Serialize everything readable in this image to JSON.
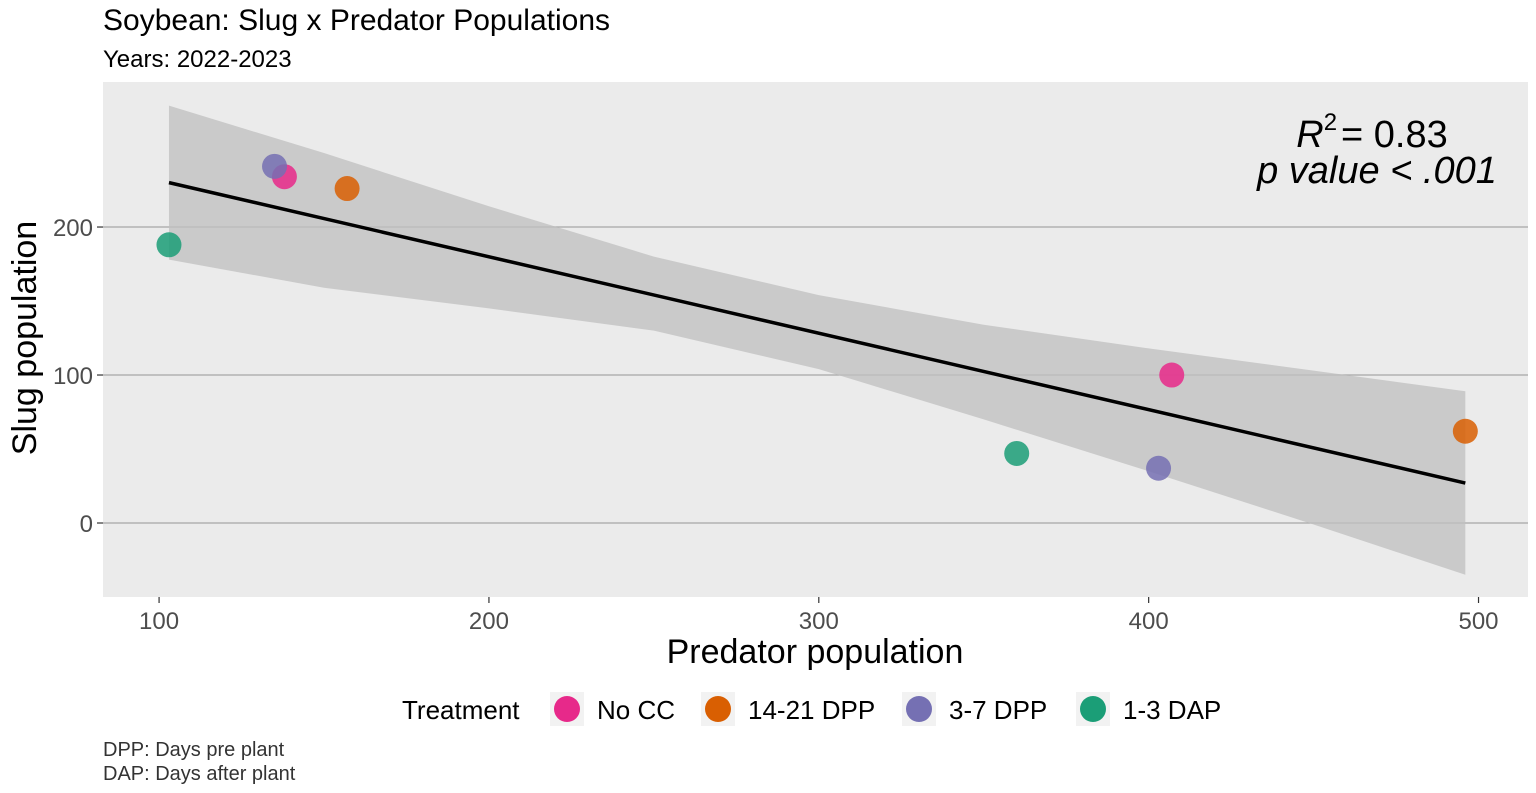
{
  "chart_data": {
    "type": "scatter",
    "title": "Soybean: Slug x Predator Populations",
    "subtitle": "Years: 2022-2023",
    "xlabel": "Predator population",
    "ylabel": "Slug population",
    "xlim": [
      83,
      515
    ],
    "ylim": [
      -50,
      298
    ],
    "xticks": [
      100,
      200,
      300,
      400,
      500
    ],
    "yticks": [
      0,
      100,
      200
    ],
    "grid": true,
    "legend_position": "bottom",
    "legend_title": "Treatment",
    "series": [
      {
        "name": "No CC",
        "color": "#e7298a",
        "points": [
          [
            138,
            234
          ],
          [
            407,
            100
          ]
        ]
      },
      {
        "name": "14-21 DPP",
        "color": "#d95f02",
        "points": [
          [
            157,
            226
          ],
          [
            496,
            62
          ]
        ]
      },
      {
        "name": "3-7 DPP",
        "color": "#7570b3",
        "points": [
          [
            135,
            241
          ],
          [
            403,
            37
          ]
        ]
      },
      {
        "name": "1-3 DAP",
        "color": "#1b9e77",
        "points": [
          [
            103,
            188
          ],
          [
            360,
            47
          ]
        ]
      }
    ],
    "trend_line": {
      "x": [
        103,
        496
      ],
      "y": [
        230,
        27
      ]
    },
    "confidence_band": {
      "x": [
        103,
        150,
        200,
        250,
        300,
        350,
        400,
        450,
        496
      ],
      "upper": [
        282,
        250,
        214,
        180,
        154,
        134,
        118,
        103,
        89
      ],
      "lower": [
        178,
        159,
        145,
        130,
        104,
        70,
        35,
        -1,
        -35
      ]
    },
    "annotation": {
      "r2_symbol": "R",
      "r2_exponent": "2",
      "r2_value": "= 0.83",
      "p_value": "p value < .001"
    },
    "caption": [
      "DPP: Days pre plant",
      "DAP: Days after plant"
    ]
  }
}
